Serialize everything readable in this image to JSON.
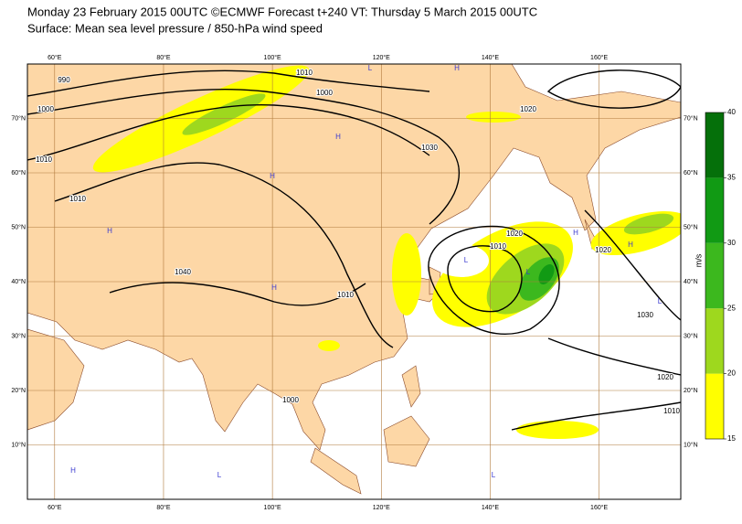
{
  "header": {
    "title": "Monday 23 February 2015 00UTC ©ECMWF Forecast t+240 VT: Thursday 5 March 2015 00UTC",
    "subtitle": "Surface: Mean sea level pressure / 850-hPa wind speed"
  },
  "map": {
    "lon_range": [
      55,
      175
    ],
    "lat_range": [
      0,
      80
    ],
    "lon_ticks": [
      {
        "value": 60,
        "label": "60°E"
      },
      {
        "value": 80,
        "label": "80°E"
      },
      {
        "value": 100,
        "label": "100°E"
      },
      {
        "value": 120,
        "label": "120°E"
      },
      {
        "value": 140,
        "label": "140°E"
      },
      {
        "value": 160,
        "label": "160°E"
      }
    ],
    "lat_ticks": [
      {
        "value": 10,
        "label": "10°N"
      },
      {
        "value": 20,
        "label": "20°N"
      },
      {
        "value": 30,
        "label": "30°N"
      },
      {
        "value": 40,
        "label": "40°N"
      },
      {
        "value": 50,
        "label": "50°N"
      },
      {
        "value": 60,
        "label": "60°N"
      },
      {
        "value": 70,
        "label": "70°N"
      }
    ],
    "contour_labels": [
      "990",
      "1000",
      "1010",
      "1010",
      "1000",
      "1010",
      "1020",
      "1030",
      "1040",
      "1010",
      "1000",
      "1010",
      "1020",
      "1020",
      "1030",
      "1020",
      "1010"
    ],
    "centers": [
      "H",
      "L",
      "H",
      "H",
      "H",
      "L",
      "L",
      "H",
      "H",
      "L",
      "L",
      "H",
      "L",
      "H"
    ]
  },
  "colorbar": {
    "unit": "m/s",
    "levels": [
      15,
      20,
      25,
      30,
      35,
      40
    ],
    "colors": [
      "#ffff00",
      "#9ed81e",
      "#3cb81e",
      "#119a14",
      "#05700a"
    ]
  }
}
